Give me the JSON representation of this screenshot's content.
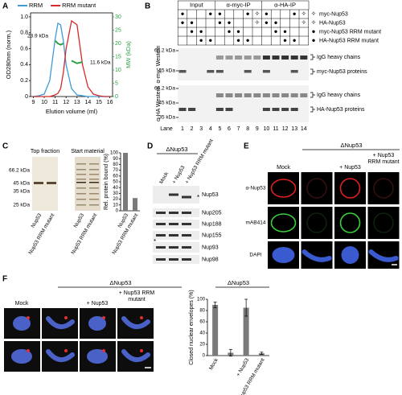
{
  "panel_labels": [
    "A",
    "B",
    "C",
    "D",
    "E",
    "F"
  ],
  "chart_data": [
    {
      "type": "line",
      "x": [
        9,
        9.5,
        10,
        10.5,
        11,
        11.25,
        11.5,
        11.75,
        12,
        12.5,
        13,
        13.5,
        14,
        14.5,
        15,
        15.5,
        16
      ],
      "xlim": [
        8.75,
        16.25
      ],
      "xticks": [
        9,
        10,
        11,
        12,
        13,
        14,
        15,
        16
      ],
      "ylim": [
        0,
        1.05
      ],
      "yticks": [
        0,
        0.2,
        0.4,
        0.6,
        0.8,
        {
          "value": 1,
          "label": "1.0"
        }
      ],
      "y2lim": [
        0,
        31.5
      ],
      "y2ticks": [
        0,
        5,
        10,
        15,
        20,
        25,
        30
      ],
      "y2color": "#2ea043",
      "xlabel": "Elution volume (ml)",
      "ylabel": "OD280nm (norm.)",
      "y2label": "MW (kDa)",
      "legend": "top-left",
      "annotations": [
        "23.9 kDa",
        "11.6 kDa"
      ],
      "series": [
        {
          "name": "RRM",
          "color": "#3d9ad6",
          "values": [
            0,
            0.01,
            0.03,
            0.2,
            0.72,
            0.92,
            0.9,
            0.7,
            0.4,
            0.1,
            0.02,
            0.01,
            0,
            0,
            0,
            0,
            0
          ]
        },
        {
          "name": "RRM mutant",
          "color": "#d42a2a",
          "values": [
            0,
            0,
            0,
            0,
            0.02,
            0.04,
            0.1,
            0.3,
            0.6,
            0.95,
            0.9,
            0.4,
            0.12,
            0.03,
            0.01,
            0,
            0
          ]
        },
        {
          "color": "#2ea043",
          "axis": "y2",
          "values": [
            null,
            null,
            null,
            null,
            21,
            20,
            19.5,
            20,
            null,
            null,
            null,
            null,
            null,
            null,
            null,
            null,
            null
          ]
        },
        {
          "color": "#2ea043",
          "axis": "y2",
          "values": [
            null,
            null,
            null,
            null,
            null,
            null,
            null,
            null,
            null,
            13.5,
            12.5,
            13,
            null,
            null,
            null,
            null,
            null
          ]
        }
      ]
    },
    {
      "type": "bar",
      "categories": [
        "Nup53",
        "Nup53 RRM mutant"
      ],
      "values": [
        100,
        22
      ],
      "color": "#7a7a7a",
      "ylim": [
        0,
        100
      ],
      "yticks": [
        0,
        10,
        20,
        30,
        40,
        50,
        60,
        70,
        80,
        90,
        100
      ],
      "ylabel": "Rel. protein bound (%)"
    },
    {
      "type": "bar",
      "title": "ΔNup53",
      "categories": [
        "Mock",
        null,
        "+ Nup53",
        "+ Nup53 RRM mutant"
      ],
      "values": [
        90,
        5,
        85,
        4
      ],
      "errors": [
        5,
        6,
        15,
        2
      ],
      "color": "#7a7a7a",
      "ylim": [
        0,
        100
      ],
      "yticks": [
        0,
        20,
        40,
        60,
        80,
        100
      ],
      "ylabel": "Closed nuclear envelopes (%)"
    }
  ],
  "panel_b": {
    "groups": [
      "Input",
      "α-myc-IP",
      "α-HA-IP"
    ],
    "rows": [
      {
        "key": "✧",
        "label": "myc-Nup53",
        "cells": [
          "●",
          null,
          null,
          "●",
          "●",
          null,
          null,
          "●",
          "✧",
          "●",
          null,
          null,
          "●",
          "✧"
        ]
      },
      {
        "key": "✧",
        "label": "HA-Nup53",
        "cells": [
          "●",
          "●",
          null,
          null,
          "●",
          "●",
          null,
          null,
          "✧",
          "●",
          "●",
          null,
          null,
          "✧"
        ]
      },
      {
        "key": "●",
        "label": "myc-Nup53 RRM mutant",
        "cells": [
          null,
          "●",
          "●",
          null,
          null,
          "●",
          "●",
          null,
          null,
          null,
          "●",
          "●",
          null,
          null
        ]
      },
      {
        "key": "●",
        "label": "HA-Nup53 RRM mutant",
        "cells": [
          null,
          null,
          "●",
          "●",
          null,
          null,
          "●",
          "●",
          null,
          null,
          null,
          "●",
          "●",
          null
        ]
      }
    ],
    "blots": [
      {
        "antibody": "α-myc Western",
        "markers": [
          "66.2 kDa",
          "45 kDa"
        ],
        "bands": [
          "IgG heavy chains",
          "myc-Nup53 proteins"
        ]
      },
      {
        "antibody": "α-HA Western",
        "markers": [
          "66.2 kDa",
          "45 kDa",
          "35 kDa"
        ],
        "bands": [
          "IgG heavy chains",
          "HA-Nup53 proteins"
        ]
      }
    ],
    "lane_title": "Lane",
    "lanes": [
      1,
      2,
      3,
      4,
      5,
      6,
      7,
      8,
      9,
      10,
      11,
      12,
      13,
      14
    ]
  },
  "panel_c": {
    "headers": [
      "Top fraction",
      "Start material"
    ],
    "markers": [
      "66.2 kDa",
      "45 kDa",
      "35 kDa",
      "25 kDa"
    ],
    "lanes": [
      "Nup53",
      "Nup53 RRM mutant"
    ]
  },
  "panel_d": {
    "condition": "ΔNup53",
    "columns": [
      "Mock",
      "+ Nup53",
      "+ Nup53 RRM mutant"
    ],
    "rows": [
      "Nup53",
      "Nup205",
      "Nup188",
      "Nup155",
      "Nup93",
      "Nup98"
    ],
    "asterisk": "*"
  },
  "panel_e": {
    "condition": "ΔNup53",
    "columns": [
      "Mock",
      "+ Nup53",
      "+ Nup53 RRM mutant"
    ],
    "rows": [
      "α-Nup53",
      "mAB414",
      "DAPI"
    ]
  },
  "panel_f": {
    "condition": "ΔNup53",
    "columns": [
      "Mock",
      "+ Nup53",
      "+ Nup53 RRM mutant"
    ]
  }
}
